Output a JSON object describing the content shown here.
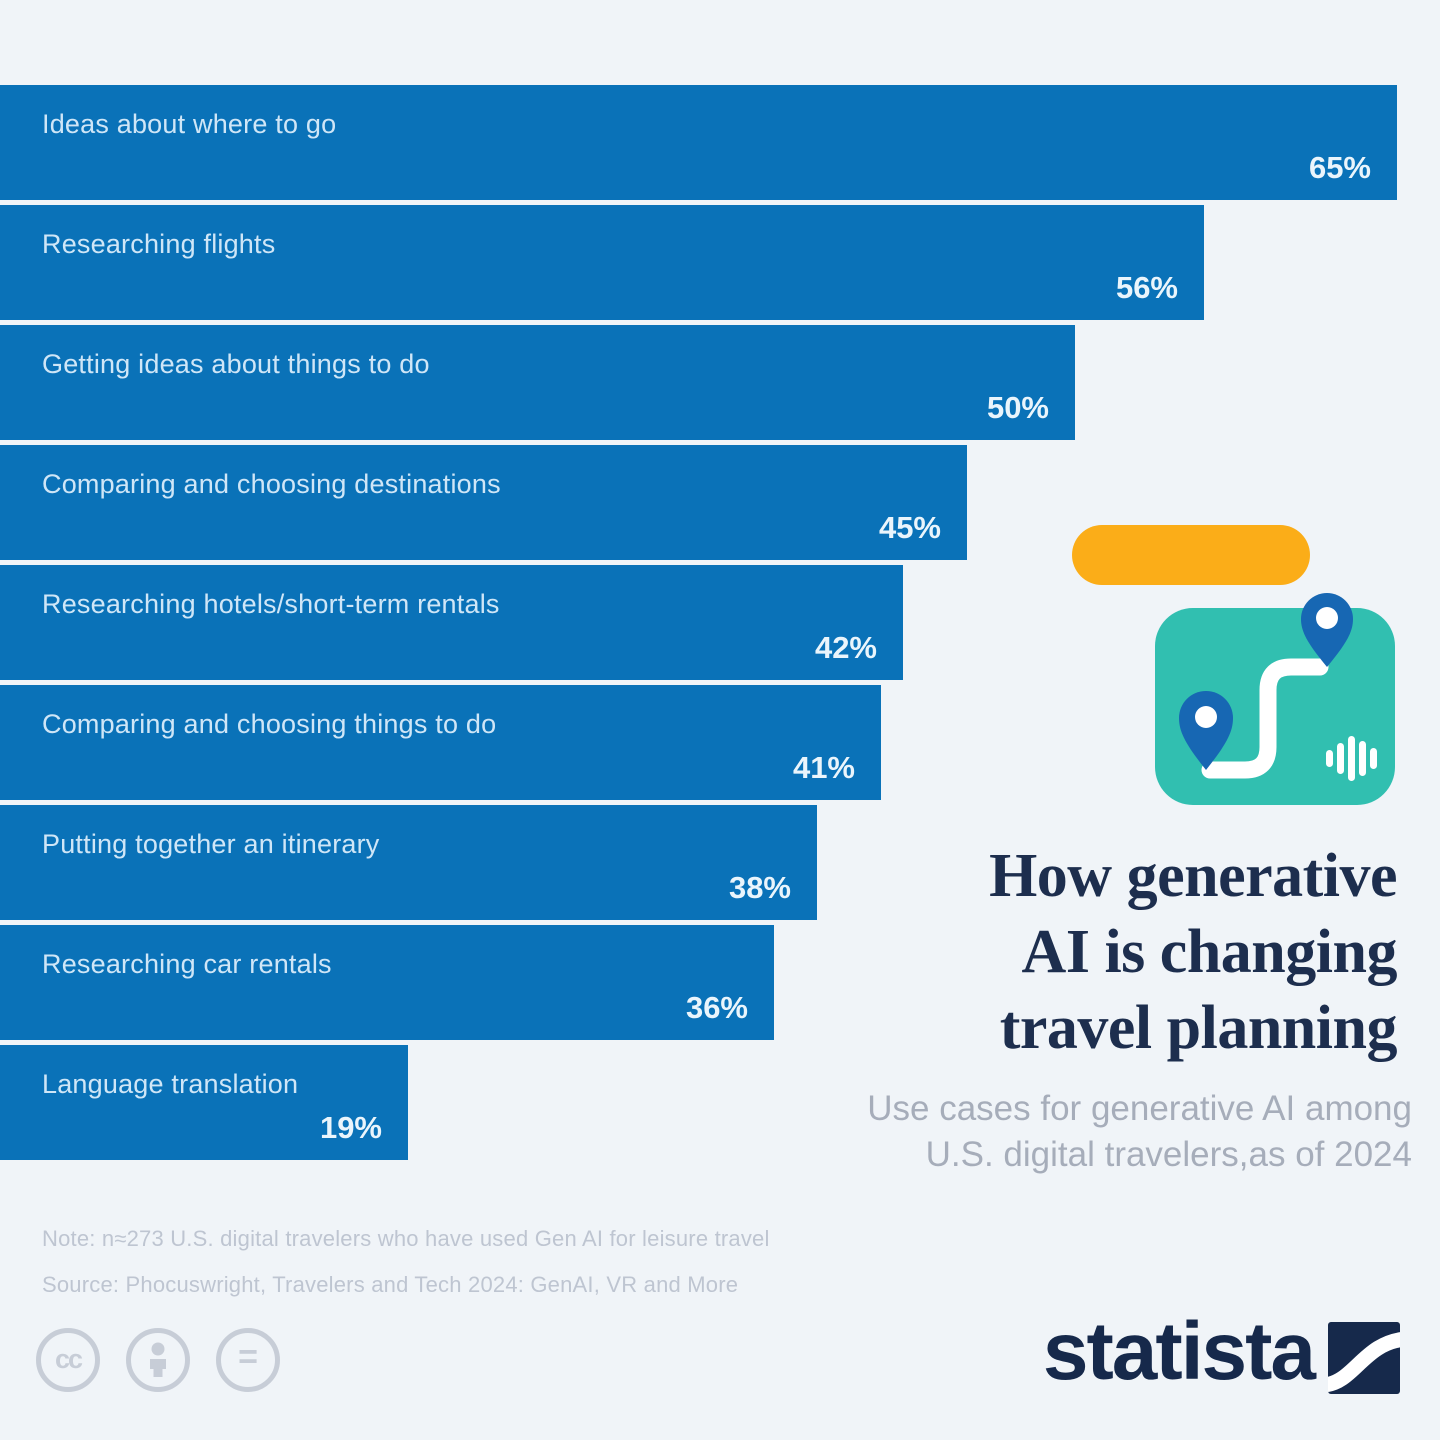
{
  "chart_data": {
    "type": "bar",
    "orientation": "horizontal",
    "title": "How generative AI is changing travel planning",
    "subtitle": "Use cases for generative AI among U.S. digital travelers, as of 2024",
    "categories": [
      "Ideas about where to go",
      "Researching flights",
      "Getting ideas about things to do",
      "Comparing and choosing destinations",
      "Researching hotels/short-term rentals",
      "Comparing and choosing things to do",
      "Putting together an itinerary",
      "Researching car rentals",
      "Language translation"
    ],
    "values": [
      65,
      56,
      50,
      45,
      42,
      41,
      38,
      36,
      19
    ],
    "value_suffix": "%",
    "xlim": [
      0,
      67
    ],
    "grid": false,
    "legend": "none",
    "bar_color": "#0A72B8"
  },
  "title": {
    "line1": "How generative",
    "line2": "AI is changing",
    "line3": "travel planning"
  },
  "subtitle": {
    "line1": "Use cases for generative AI among",
    "line2": "U.S. digital travelers,as of 2024"
  },
  "footer": {
    "note": "Note: n≈273 U.S. digital travelers who have used Gen AI for leisure travel",
    "source": "Source: Phocuswright, Travelers and Tech 2024: GenAI, VR and More"
  },
  "branding": {
    "logo_text": "statista"
  },
  "license_icons": {
    "cc_label": "cc",
    "attribution_icon": "person",
    "nd_label": "="
  },
  "colors": {
    "background": "#F0F4F8",
    "bar_blue": "#0A72B8",
    "bar_label_text": "#CFE6F7",
    "bar_value_text": "#EAF5FC",
    "accent_orange": "#FBAD18",
    "accent_teal": "#31BFB0",
    "pin_blue": "#1767B3",
    "title_navy": "#1D2E4E",
    "subtitle_gray": "#A6ADBA",
    "footnote_gray": "#BEC5D1",
    "logo_navy": "#16294B"
  }
}
